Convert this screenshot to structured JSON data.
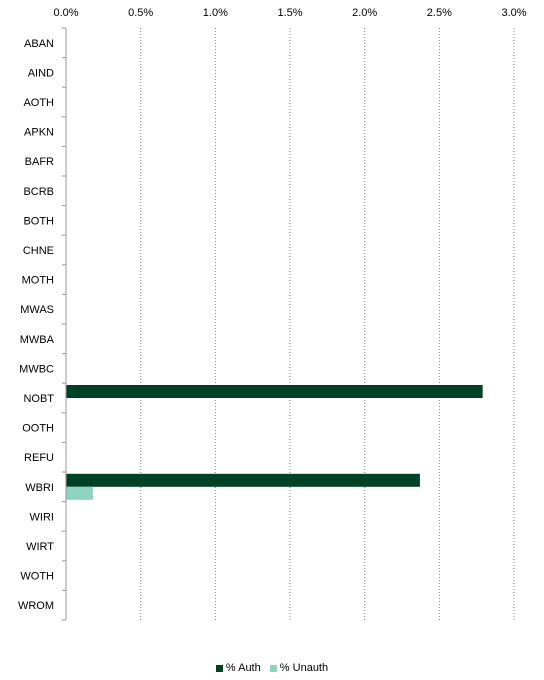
{
  "chart_data": {
    "type": "bar",
    "orientation": "horizontal",
    "categories": [
      "ABAN",
      "AIND",
      "AOTH",
      "APKN",
      "BAFR",
      "BCRB",
      "BOTH",
      "CHNE",
      "MOTH",
      "MWAS",
      "MWBA",
      "MWBC",
      "NOBT",
      "OOTH",
      "REFU",
      "WBRI",
      "WIRI",
      "WIRT",
      "WOTH",
      "WROM"
    ],
    "xlim": [
      0,
      3.0
    ],
    "xticks": [
      "0.0%",
      "0.5%",
      "1.0%",
      "1.5%",
      "2.0%",
      "2.5%",
      "3.0%"
    ],
    "xtick_values": [
      0,
      0.5,
      1.0,
      1.5,
      2.0,
      2.5,
      3.0
    ],
    "x_axis_position": "top",
    "grid": "vertical dotted",
    "legend_position": "bottom",
    "series": [
      {
        "name": "% Auth",
        "color": "#004225",
        "values": [
          0,
          0,
          0,
          0,
          0,
          0,
          0,
          0,
          0,
          0,
          0,
          0,
          2.79,
          0,
          0,
          2.37,
          0,
          0,
          0,
          0
        ]
      },
      {
        "name": "% Unauth",
        "color": "#8fd3c1",
        "values": [
          0,
          0,
          0,
          0,
          0,
          0,
          0,
          0,
          0,
          0,
          0,
          0,
          0,
          0,
          0,
          0.18,
          0,
          0,
          0,
          0
        ]
      }
    ]
  }
}
